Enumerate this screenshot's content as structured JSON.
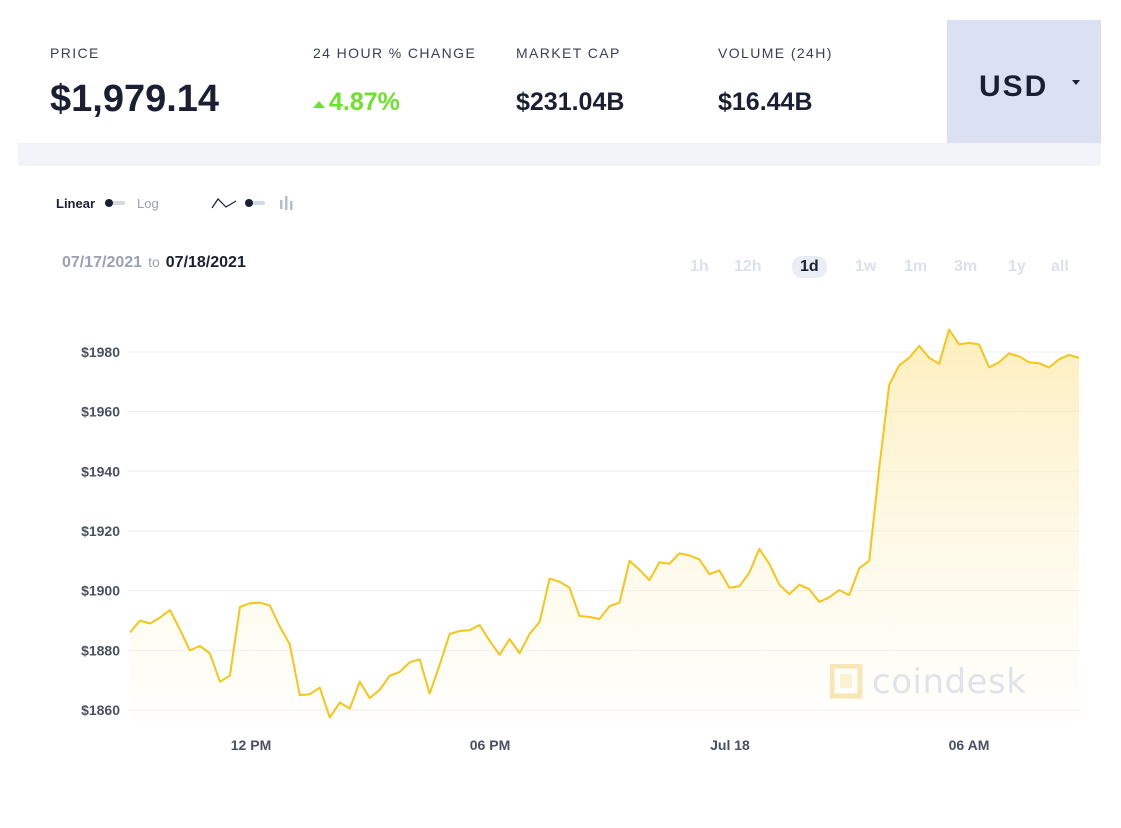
{
  "stats": {
    "price": {
      "label": "PRICE",
      "value": "$1,979.14"
    },
    "change": {
      "label": "24 HOUR % CHANGE",
      "value": "4.87%"
    },
    "market_cap": {
      "label": "MARKET CAP",
      "value": "$231.04B"
    },
    "volume": {
      "label": "VOLUME (24H)",
      "value": "$16.44B"
    }
  },
  "currency": {
    "label": "USD"
  },
  "controls": {
    "scale_on": "Linear",
    "scale_off": "Log",
    "date_start": "07/17/2021",
    "date_to": "to",
    "date_end": "07/18/2021",
    "ranges": [
      "1h",
      "12h",
      "1d",
      "1w",
      "1m",
      "3m",
      "1y",
      "all"
    ],
    "active_range": "1d"
  },
  "watermark": {
    "text": "coindesk"
  },
  "colors": {
    "line": "#f5c518",
    "change_up": "#6ee02e",
    "currency_bg": "#dbe0f2"
  },
  "chart_data": {
    "type": "area",
    "y_tick_labels": [
      "$1980",
      "$1960",
      "$1940",
      "$1920",
      "$1900",
      "$1880",
      "$1860"
    ],
    "y_ticks": [
      1980,
      1960,
      1940,
      1920,
      1900,
      1880,
      1860
    ],
    "x_tick_labels": [
      "12 PM",
      "06 PM",
      "Jul 18",
      "06 AM"
    ],
    "ylim": [
      1856,
      1990
    ],
    "grid": true,
    "values": [
      1886,
      1890,
      1889,
      1891,
      1893.5,
      1887,
      1880,
      1881.5,
      1879,
      1869.5,
      1871.5,
      1894.5,
      1895.8,
      1896,
      1895,
      1888,
      1882,
      1865,
      1865.3,
      1867.5,
      1857.5,
      1862.5,
      1860.5,
      1869.5,
      1864,
      1866.8,
      1871.5,
      1872.8,
      1876,
      1877,
      1865.5,
      1875.2,
      1885.5,
      1886.5,
      1886.8,
      1888.5,
      1883.2,
      1878.5,
      1883.8,
      1879,
      1885.5,
      1889.5,
      1904,
      1903,
      1901,
      1891.5,
      1891.2,
      1890.5,
      1894.8,
      1896,
      1910,
      1907,
      1903.5,
      1909.5,
      1909,
      1912.5,
      1911.8,
      1910.5,
      1905.5,
      1906.8,
      1901,
      1901.5,
      1906,
      1914,
      1909,
      1902,
      1898.8,
      1902,
      1900.5,
      1896.2,
      1897.8,
      1900.2,
      1898.5,
      1907.5,
      1910,
      1941,
      1969,
      1975.5,
      1978,
      1982,
      1978,
      1976,
      1987.5,
      1982.5,
      1983,
      1982.5,
      1974.8,
      1976.5,
      1979.5,
      1978.5,
      1976.5,
      1976.2,
      1974.8,
      1977.5,
      1979,
      1978
    ]
  }
}
